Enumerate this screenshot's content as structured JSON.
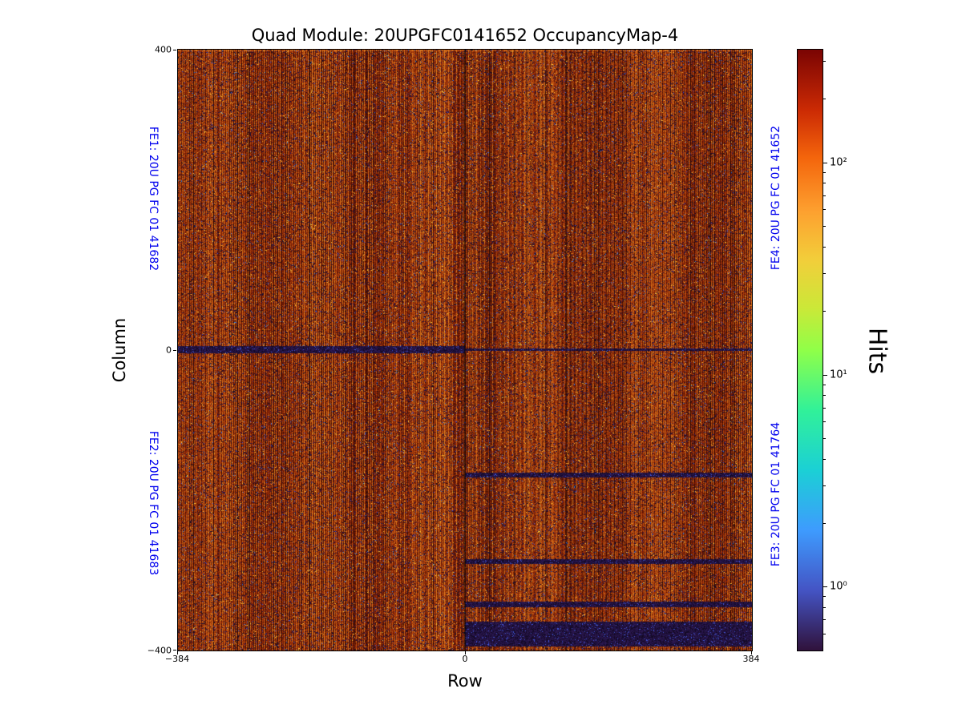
{
  "figure": {
    "title": "Quad Module: 20UPGFC0141652 OccupancyMap-4",
    "xlabel": "Row",
    "ylabel": "Column",
    "colorbar_label": "Hits"
  },
  "axis_ticks": {
    "x": [
      "−384",
      "0",
      "384"
    ],
    "y": [
      "400",
      "0",
      "−400"
    ],
    "colorbar": [
      "10²",
      "10¹",
      "10⁰"
    ]
  },
  "fe_labels": {
    "fe1": "FE1: 20U PG FC 01 41682",
    "fe2": "FE2: 20U PG FC 01 41683",
    "fe4": "FE4: 20U PG FC 01 41652",
    "fe3": "FE3: 20U PG FC 01 41764"
  },
  "colors": {
    "fe_label": "#0000ee",
    "axis": "#000000",
    "background": "#ffffff"
  },
  "chart_data": {
    "type": "heatmap",
    "title": "Quad Module: 20UPGFC0141652 OccupancyMap-4",
    "xlabel": "Row",
    "ylabel": "Column",
    "xlim": [
      -384,
      384
    ],
    "ylim": [
      -400,
      400
    ],
    "x_ticks": [
      -384,
      0,
      384
    ],
    "y_ticks": [
      -400,
      0,
      400
    ],
    "grid": false,
    "chips": [
      {
        "name": "FE1",
        "id": "20U PG FC 01 41682",
        "quadrant": "top-left"
      },
      {
        "name": "FE2",
        "id": "20U PG FC 01 41683",
        "quadrant": "bottom-left"
      },
      {
        "name": "FE4",
        "id": "20U PG FC 01 41652",
        "quadrant": "top-right"
      },
      {
        "name": "FE3",
        "id": "20U PG FC 01 41764",
        "quadrant": "bottom-right"
      }
    ],
    "colorbar": {
      "label": "Hits",
      "scale": "log",
      "vmin": 0.5,
      "vmax": 340,
      "major_ticks": [
        1,
        10,
        100
      ],
      "major_tick_labels": [
        "10⁰",
        "10¹",
        "10²"
      ],
      "colormap": "turbo",
      "stops": [
        {
          "t": 0.0,
          "c": "#30123b"
        },
        {
          "t": 0.1,
          "c": "#4454c4"
        },
        {
          "t": 0.2,
          "c": "#3e9bfe"
        },
        {
          "t": 0.3,
          "c": "#1bd0d5"
        },
        {
          "t": 0.4,
          "c": "#31f199"
        },
        {
          "t": 0.5,
          "c": "#90ff48"
        },
        {
          "t": 0.57,
          "c": "#cbe838"
        },
        {
          "t": 0.65,
          "c": "#f2ce3a"
        },
        {
          "t": 0.73,
          "c": "#fda130"
        },
        {
          "t": 0.82,
          "c": "#f4650c"
        },
        {
          "t": 0.9,
          "c": "#cb2a04"
        },
        {
          "t": 1.0,
          "c": "#7a0403"
        }
      ]
    },
    "content_summary": "Hit-occupancy map of a quad pixel module. Bulk occupancy ~50-300 hits (dark red / orange fine vertical striping) with sparse low-occupancy dark speckles. A dark low-hit horizontal band crosses column 0 (thicker on the left half), and the right half (FE3/FE4 side) shows additional dead/low horizontal bands listed in low_bands (column coordinates).",
    "low_bands": [
      {
        "half": "left",
        "col_min": -4,
        "col_max": 5
      },
      {
        "half": "right",
        "col_min": -1,
        "col_max": 2
      },
      {
        "half": "right",
        "col_min": -170,
        "col_max": -163
      },
      {
        "half": "right",
        "col_min": -285,
        "col_max": -278
      },
      {
        "half": "right",
        "col_min": -342,
        "col_max": -335
      },
      {
        "half": "right",
        "col_min": -395,
        "col_max": -362
      }
    ],
    "texture": {
      "seed": 1337,
      "base_level": 0.52,
      "stripe_pattern": [
        0.22,
        -0.26,
        0.34,
        -0.02,
        -0.3
      ],
      "column_jitter": 0.34,
      "dark_column_prob": 0.05,
      "wave_amp": 0.09,
      "wave_freq": 0.045,
      "pixel_noise": 0.5,
      "warm_stops": [
        "#300a03",
        "#661505",
        "#942a08",
        "#bb4e10",
        "#de7c1e"
      ],
      "dark_speckle_prob": 0.11,
      "dark_speckle_colors": [
        "#161027",
        "#241345",
        "#301b56",
        "#1c0f33"
      ],
      "blue_speckle_prob": 0.012,
      "blue_speckle_colors": [
        "#3a50d8",
        "#2f7bdf"
      ],
      "bright_speckle_prob": 0.02,
      "bright_speckle_colors": [
        "#eda22e",
        "#f6c53a"
      ],
      "band_base_colors": [
        "#140a26",
        "#221244",
        "#2c1950"
      ],
      "band_blue_prob": 0.05,
      "band_blue_color": "#4156d8",
      "center_line_darken": 0.45
    }
  }
}
